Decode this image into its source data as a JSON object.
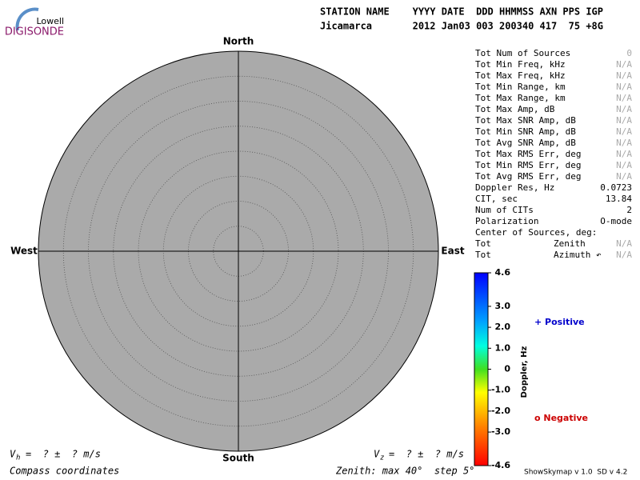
{
  "logo": {
    "top": "Lowell",
    "bottom": "DIGISONDE"
  },
  "header": {
    "line1": "STATION NAME    YYYY DATE  DDD HHMMSS AXN PPS IGP",
    "line2": "Jicamarca       2012 Jan03 003 200340 417  75 +8G"
  },
  "compass": {
    "north": "North",
    "south": "South",
    "west": "West",
    "east": "East"
  },
  "table": {
    "rows": [
      {
        "label": "Tot Num of Sources",
        "value": "0",
        "color": "#aaaaaa"
      },
      {
        "label": "Tot Min Freq, kHz",
        "value": "N/A",
        "color": "#aaaaaa"
      },
      {
        "label": "Tot Max Freq, kHz",
        "value": "N/A",
        "color": "#aaaaaa"
      },
      {
        "label": "Tot Min Range, km",
        "value": "N/A",
        "color": "#aaaaaa"
      },
      {
        "label": "Tot Max Range, km",
        "value": "N/A",
        "color": "#aaaaaa"
      },
      {
        "label": "Tot Max Amp, dB",
        "value": "N/A",
        "color": "#aaaaaa"
      },
      {
        "label": "Tot Max SNR Amp, dB",
        "value": "N/A",
        "color": "#aaaaaa"
      },
      {
        "label": "Tot Min SNR Amp, dB",
        "value": "N/A",
        "color": "#aaaaaa"
      },
      {
        "label": "Tot Avg SNR Amp, dB",
        "value": "N/A",
        "color": "#aaaaaa"
      },
      {
        "label": "Tot Max RMS Err, deg",
        "value": "N/A",
        "color": "#aaaaaa"
      },
      {
        "label": "Tot Min RMS Err, deg",
        "value": "N/A",
        "color": "#aaaaaa"
      },
      {
        "label": "Tot Avg RMS Err, deg",
        "value": "N/A",
        "color": "#aaaaaa"
      },
      {
        "label": "Doppler Res, Hz",
        "value": "0.0723",
        "color": "#000000"
      },
      {
        "label": "CIT, sec",
        "value": "13.84",
        "color": "#000000"
      },
      {
        "label": "Num of CITs",
        "value": "2",
        "color": "#000000"
      },
      {
        "label": "Polarization",
        "value": "O-mode",
        "color": "#000000"
      },
      {
        "label": "Center of Sources, deg:"
      },
      {
        "label": "Tot",
        "sublabel": "Zenith",
        "value": "N/A",
        "color": "#aaaaaa"
      },
      {
        "label": "Tot",
        "sublabel": "Azimuth ↶",
        "value": "N/A",
        "color": "#aaaaaa"
      }
    ]
  },
  "colorbar": {
    "label": "Doppler, Hz",
    "lim": [
      -4.6,
      4.6
    ],
    "ticks": [
      4.6,
      {
        "value": 3,
        "label": "3.0"
      },
      {
        "value": 2,
        "label": "2.0"
      },
      {
        "value": 1,
        "label": "1.0"
      },
      0,
      {
        "value": -1,
        "label": "-1.0"
      },
      {
        "value": -2,
        "label": "-2.0"
      },
      {
        "value": -3,
        "label": "-3.0"
      },
      -4.6
    ]
  },
  "legend": {
    "positive": "+ Positive",
    "negative": "o Negative"
  },
  "footer": {
    "vh_symbol": "V",
    "vh_sub": "h",
    "vh_text": "=  ? ±  ? m/s",
    "vz_symbol": "V",
    "vz_sub": "z",
    "vz_text": "=  ? ±  ? m/s",
    "coords": "Compass coordinates",
    "zenith": "Zenith: max 40°  step 5°",
    "version": "ShowSkymap v 1.0  SD v 4.2"
  }
}
